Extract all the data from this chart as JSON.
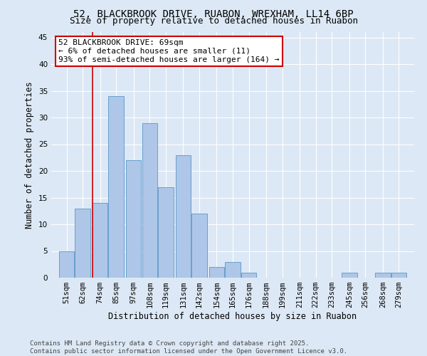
{
  "title1": "52, BLACKBROOK DRIVE, RUABON, WREXHAM, LL14 6BP",
  "title2": "Size of property relative to detached houses in Ruabon",
  "xlabel": "Distribution of detached houses by size in Ruabon",
  "ylabel": "Number of detached properties",
  "footer1": "Contains HM Land Registry data © Crown copyright and database right 2025.",
  "footer2": "Contains public sector information licensed under the Open Government Licence v3.0.",
  "bin_labels": [
    "51sqm",
    "62sqm",
    "74sqm",
    "85sqm",
    "97sqm",
    "108sqm",
    "119sqm",
    "131sqm",
    "142sqm",
    "154sqm",
    "165sqm",
    "176sqm",
    "188sqm",
    "199sqm",
    "211sqm",
    "222sqm",
    "233sqm",
    "245sqm",
    "256sqm",
    "268sqm",
    "279sqm"
  ],
  "bar_heights": [
    5,
    13,
    14,
    34,
    22,
    29,
    17,
    23,
    12,
    2,
    3,
    1,
    0,
    0,
    0,
    0,
    0,
    1,
    0,
    1,
    1
  ],
  "bar_color": "#aec6e8",
  "bar_edge_color": "#5a96c8",
  "annotation_line1": "52 BLACKBROOK DRIVE: 69sqm",
  "annotation_line2": "← 6% of detached houses are smaller (11)",
  "annotation_line3": "93% of semi-detached houses are larger (164) →",
  "annotation_box_color": "#ffffff",
  "annotation_box_edge": "#cc0000",
  "vline_color": "#cc0000",
  "ylim": [
    0,
    46
  ],
  "background_color": "#dce8f5",
  "grid_color": "#ffffff",
  "title_fontsize": 10,
  "subtitle_fontsize": 9,
  "axis_label_fontsize": 8.5,
  "tick_fontsize": 7.5,
  "annotation_fontsize": 8,
  "footer_fontsize": 6.5
}
